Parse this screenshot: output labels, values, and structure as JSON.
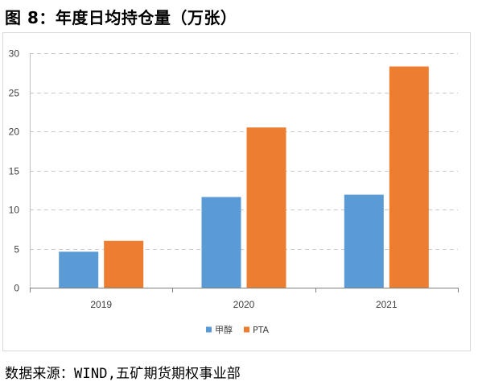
{
  "figure": {
    "title": "图 8：年度日均持仓量（万张）",
    "source": "数据来源：WIND,五矿期货期权事业部"
  },
  "chart_data": {
    "type": "bar",
    "categories": [
      "2019",
      "2020",
      "2021"
    ],
    "series": [
      {
        "name": "甲醇",
        "color": "#5B9BD5",
        "values": [
          4.6,
          11.6,
          11.9
        ]
      },
      {
        "name": "PTA",
        "color": "#ED7D31",
        "values": [
          6.0,
          20.5,
          28.3
        ]
      }
    ],
    "ylim": [
      0,
      30
    ],
    "yticks": [
      0,
      5,
      10,
      15,
      20,
      25,
      30
    ],
    "grid": true,
    "legend_position": "bottom-center",
    "xlabel": "",
    "ylabel": ""
  }
}
